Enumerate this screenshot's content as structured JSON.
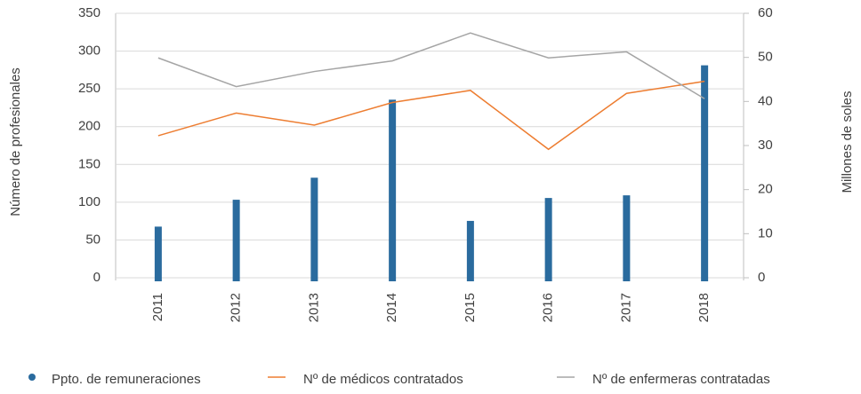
{
  "chart_data": {
    "type": "bar_line",
    "categories": [
      "2011",
      "2012",
      "2013",
      "2014",
      "2015",
      "2016",
      "2017",
      "2018"
    ],
    "ylabel": "Número de profesionales",
    "y2label": "Millones de soles",
    "ylim": [
      0,
      350
    ],
    "yticks": [
      0,
      50,
      100,
      150,
      200,
      250,
      300,
      350
    ],
    "y2lim": [
      0,
      60
    ],
    "y2ticks": [
      0,
      10,
      20,
      30,
      40,
      50,
      60
    ],
    "grid": true,
    "legend": "bottom",
    "series": [
      {
        "name": "Ppto. de remuneraciones",
        "type": "bar",
        "axis": "y2",
        "color": "#2a6b9e",
        "values": [
          11.6,
          17.7,
          22.7,
          40.4,
          12.9,
          18.1,
          18.7,
          48.2
        ]
      },
      {
        "name": "Nº de médicos contratados",
        "type": "line",
        "color": "#ed7d31",
        "values": [
          188,
          218,
          202,
          232,
          248,
          170,
          244,
          260
        ]
      },
      {
        "name": "Nº de enfermeras contratadas",
        "type": "line",
        "color": "#a5a5a5",
        "values": [
          291,
          253,
          273,
          287,
          324,
          291,
          299,
          237
        ]
      }
    ]
  }
}
